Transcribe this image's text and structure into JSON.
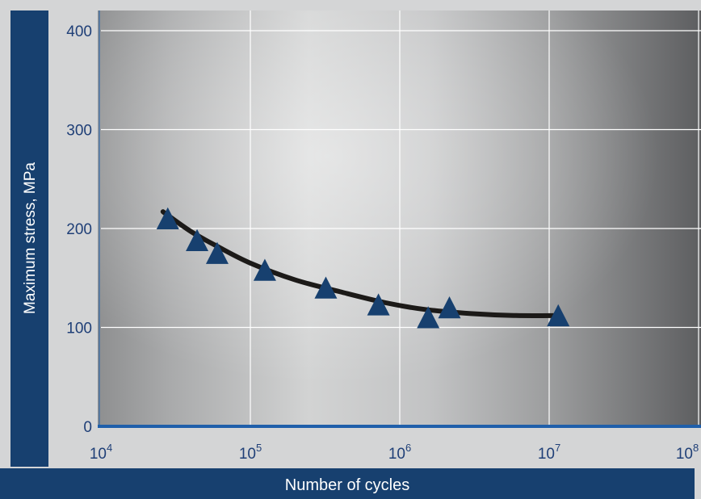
{
  "chart_data": {
    "type": "scatter",
    "title": "",
    "xlabel": "Number of cycles",
    "ylabel": "Maximum stress, MPa",
    "x_scale": "log",
    "xlim": [
      10000,
      100000000
    ],
    "ylim": [
      0,
      400
    ],
    "x_ticks": [
      {
        "value": 10000,
        "base": "10",
        "exp": "4"
      },
      {
        "value": 100000,
        "base": "10",
        "exp": "5"
      },
      {
        "value": 1000000,
        "base": "10",
        "exp": "6"
      },
      {
        "value": 10000000,
        "base": "10",
        "exp": "7"
      },
      {
        "value": 100000000,
        "base": "10",
        "exp": "8"
      }
    ],
    "y_ticks": [
      {
        "value": 0,
        "label": "0"
      },
      {
        "value": 100,
        "label": "100"
      },
      {
        "value": 200,
        "label": "200"
      },
      {
        "value": 300,
        "label": "300"
      },
      {
        "value": 400,
        "label": "400"
      }
    ],
    "grid": true,
    "series": [
      {
        "marker": "triangle",
        "color": "#17406f",
        "points": [
          {
            "x": 28000,
            "y": 210
          },
          {
            "x": 44000,
            "y": 188
          },
          {
            "x": 60000,
            "y": 175
          },
          {
            "x": 125000,
            "y": 158
          },
          {
            "x": 320000,
            "y": 140
          },
          {
            "x": 720000,
            "y": 123
          },
          {
            "x": 1550000,
            "y": 110
          },
          {
            "x": 2150000,
            "y": 120
          },
          {
            "x": 11500000,
            "y": 112
          }
        ]
      }
    ],
    "fit_curve": {
      "color": "#1c1a18",
      "points": [
        {
          "x": 26000,
          "y": 217
        },
        {
          "x": 40000,
          "y": 197
        },
        {
          "x": 60000,
          "y": 182
        },
        {
          "x": 100000,
          "y": 165
        },
        {
          "x": 200000,
          "y": 148
        },
        {
          "x": 400000,
          "y": 136
        },
        {
          "x": 800000,
          "y": 125
        },
        {
          "x": 1500000,
          "y": 118
        },
        {
          "x": 3000000,
          "y": 114
        },
        {
          "x": 6000000,
          "y": 112
        },
        {
          "x": 12000000,
          "y": 112
        }
      ]
    },
    "colors": {
      "frame": "#17406f",
      "axis_line": "#1f5faa",
      "tick_text": "#1f3f77",
      "grid": "#ffffff"
    }
  }
}
